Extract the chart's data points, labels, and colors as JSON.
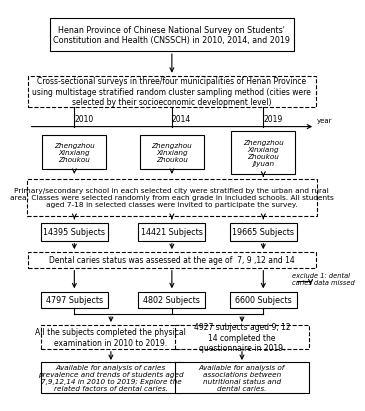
{
  "title_box_text": "Henan Province of Chinese National Survey on Students'\nConstitution and Health (CNSSCH) in 2010, 2014, and 2019",
  "cross_section_text": "Cross-sectional surveys in three/four municipalities of Henan Province\nusing multistage stratified random cluster sampling method (cities were\nselected by their socioeconomic development level)",
  "years": [
    "2010",
    "2014",
    "2019"
  ],
  "city_boxes": [
    "Zhengzhou\nXinxiang\nZhoukou",
    "Zhengzhou\nXinxiang\nZhoukou",
    "Zhengzhou\nXinxiang\nZhoukou\nJiyuan"
  ],
  "school_text": "Primary/secondary school in each selected city were stratified by the urban and rural\narea. Classes were selected randomly from each grade in included schools. All students\naged 7-18 in selected classes were invited to participate the survey.",
  "subject_boxes": [
    "14395 Subjects",
    "14421 Subjects",
    "19665 Subjects"
  ],
  "dental_text": "Dental caries status was assessed at the age of  7, 9 ,12 and 14",
  "exclude_note": "exclude 1: dental\ncaries data missed",
  "filtered_boxes": [
    "4797 Subjects",
    "4802 Subjects",
    "6600 Subjects"
  ],
  "left_mid_text": "All the subjects completed the physical\nexamination in 2010 to 2019.",
  "right_mid_text": "4927 subjects aged 9, 12\n14 completed the\nquestionnaire in 2019.",
  "left_final_text": "Available for analysis of caries\nprevalence and trends of students aged\n7,9,12,14 in 2010 to 2019; Explore the\nrelated factors of dental caries.",
  "right_final_text": "Available for analysis of\nassociations between\nnutritional status and\ndental caries."
}
